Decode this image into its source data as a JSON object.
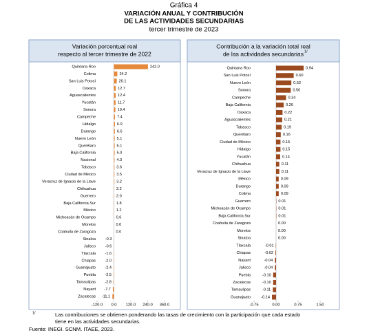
{
  "header": {
    "label": "Gráfica 4",
    "title_lines": [
      "VARIACIÓN ANUAL Y CONTRIBUCIÓN",
      "DE LAS ACTIVIDADES SECUNDARIAS"
    ],
    "subtitle": "tercer trimestre de 2023"
  },
  "chart_data": [
    {
      "type": "bar",
      "orientation": "horizontal",
      "title": [
        "Variación porcentual real",
        "respecto al tercer trimestre de 2022"
      ],
      "color": "#e5893a",
      "categories": [
        "Quintana Roo",
        "Colima",
        "San Luis Potosí",
        "Oaxaca",
        "Aguascalientes",
        "Yucatán",
        "Sonora",
        "Campeche",
        "Hidalgo",
        "Durango",
        "Nuevo León",
        "Querétaro",
        "Baja California",
        "Nacional",
        "Tabasco",
        "Ciudad de México",
        "Veracruz de Ignacio de la Llave",
        "Chihuahua",
        "Guerrero",
        "Baja California Sur",
        "México",
        "Michoacán de Ocampo",
        "Morelos",
        "Coahuila de Zaragoza",
        "Sinaloa",
        "Jalisco",
        "Tlaxcala",
        "Chiapas",
        "Guanajuato",
        "Puebla",
        "Tamaulipas",
        "Nayarit",
        "Zacatecas"
      ],
      "values": [
        242.0,
        24.2,
        20.1,
        12.7,
        12.4,
        11.7,
        10.4,
        7.4,
        6.9,
        6.6,
        5.1,
        5.1,
        5.0,
        4.3,
        3.6,
        3.5,
        3.2,
        2.2,
        2.0,
        1.8,
        1.2,
        0.6,
        0.0,
        0.0,
        -0.3,
        -0.6,
        -1.6,
        -2.0,
        -2.4,
        -2.5,
        -2.8,
        -7.7,
        -11.1
      ],
      "value_labels": [
        "242.0",
        "24.2",
        "20.1",
        "12.7",
        "12.4",
        "11.7",
        "10.4",
        "7.4",
        "6.9",
        "6.6",
        "5.1",
        "5.1",
        "5.0",
        "4.3",
        "3.6",
        "3.5",
        "3.2",
        "2.2",
        "2.0",
        "1.8",
        "1.2",
        "0.6",
        "0.0",
        "0.0",
        "-0.3",
        "-0.6",
        "-1.6",
        "-2.0",
        "-2.4",
        "-2.5",
        "-2.8",
        "-7.7",
        "-11.1"
      ],
      "xlim": [
        -120,
        360
      ],
      "xticks": [
        {
          "value": -120,
          "label": "-120.0"
        },
        {
          "value": 0,
          "label": "0.0"
        },
        {
          "value": 120,
          "label": "120.0"
        },
        {
          "value": 240,
          "label": "240.0"
        },
        {
          "value": 360,
          "label": "360.0"
        }
      ]
    },
    {
      "type": "bar",
      "orientation": "horizontal",
      "title": [
        "Contribución a la variación total real",
        "de las actividades secundarias"
      ],
      "title_note": "1/",
      "color": "#9a4a1e",
      "categories": [
        "Quintana Roo",
        "San Luis Potosí",
        "Nuevo León",
        "Sonora",
        "Campeche",
        "Baja California",
        "Oaxaca",
        "Aguascalientes",
        "Tabasco",
        "Querétaro",
        "Ciudad de México",
        "Hidalgo",
        "Yucatán",
        "Chihuahua",
        "Veracruz de Ignacio de la Llave",
        "México",
        "Durango",
        "Colima",
        "Guerrero",
        "Michoacán de Ocampo",
        "Baja California Sur",
        "Coahuila de Zaragoza",
        "Morelos",
        "Sinaloa",
        "Tlaxcala",
        "Chiapas",
        "Nayarit",
        "Jalisco",
        "Puebla",
        "Zacatecas",
        "Tamaulipas",
        "Guanajuato"
      ],
      "values": [
        0.94,
        0.6,
        0.52,
        0.5,
        0.34,
        0.26,
        0.22,
        0.21,
        0.19,
        0.16,
        0.15,
        0.15,
        0.14,
        0.11,
        0.11,
        0.09,
        0.09,
        0.09,
        0.01,
        0.01,
        0.01,
        0.0,
        0.0,
        0.0,
        -0.01,
        -0.02,
        -0.04,
        -0.04,
        -0.1,
        -0.1,
        -0.11,
        -0.14
      ],
      "value_labels": [
        "0.94",
        "0.60",
        "0.52",
        "0.50",
        "0.34",
        "0.26",
        "0.22",
        "0.21",
        "0.19",
        "0.16",
        "0.15",
        "0.15",
        "0.14",
        "0.11",
        "0.11",
        "0.09",
        "0.09",
        "0.09",
        "0.01",
        "0.01",
        "0.01",
        "0.00",
        "0.00",
        "0.00",
        "-0.01",
        "-0.02",
        "-0.04",
        "-0.04",
        "-0.10",
        "-0.10",
        "-0.11",
        "-0.14"
      ],
      "xlim": [
        -0.75,
        1.5
      ],
      "xticks": [
        -0.75,
        {
          "value": 0,
          "label": "0.00"
        },
        0.75,
        {
          "value": 1.5,
          "label": "1.50"
        }
      ]
    }
  ],
  "footnote": {
    "marker": "1/",
    "lines": [
      "Las contribuciones se obtienen ponderando las tasas de crecimiento con la participación que cada estado",
      "tiene en las actividades secundarias."
    ]
  },
  "source": "Fuente: INEGI. SCNM. ITAEE, 2023."
}
